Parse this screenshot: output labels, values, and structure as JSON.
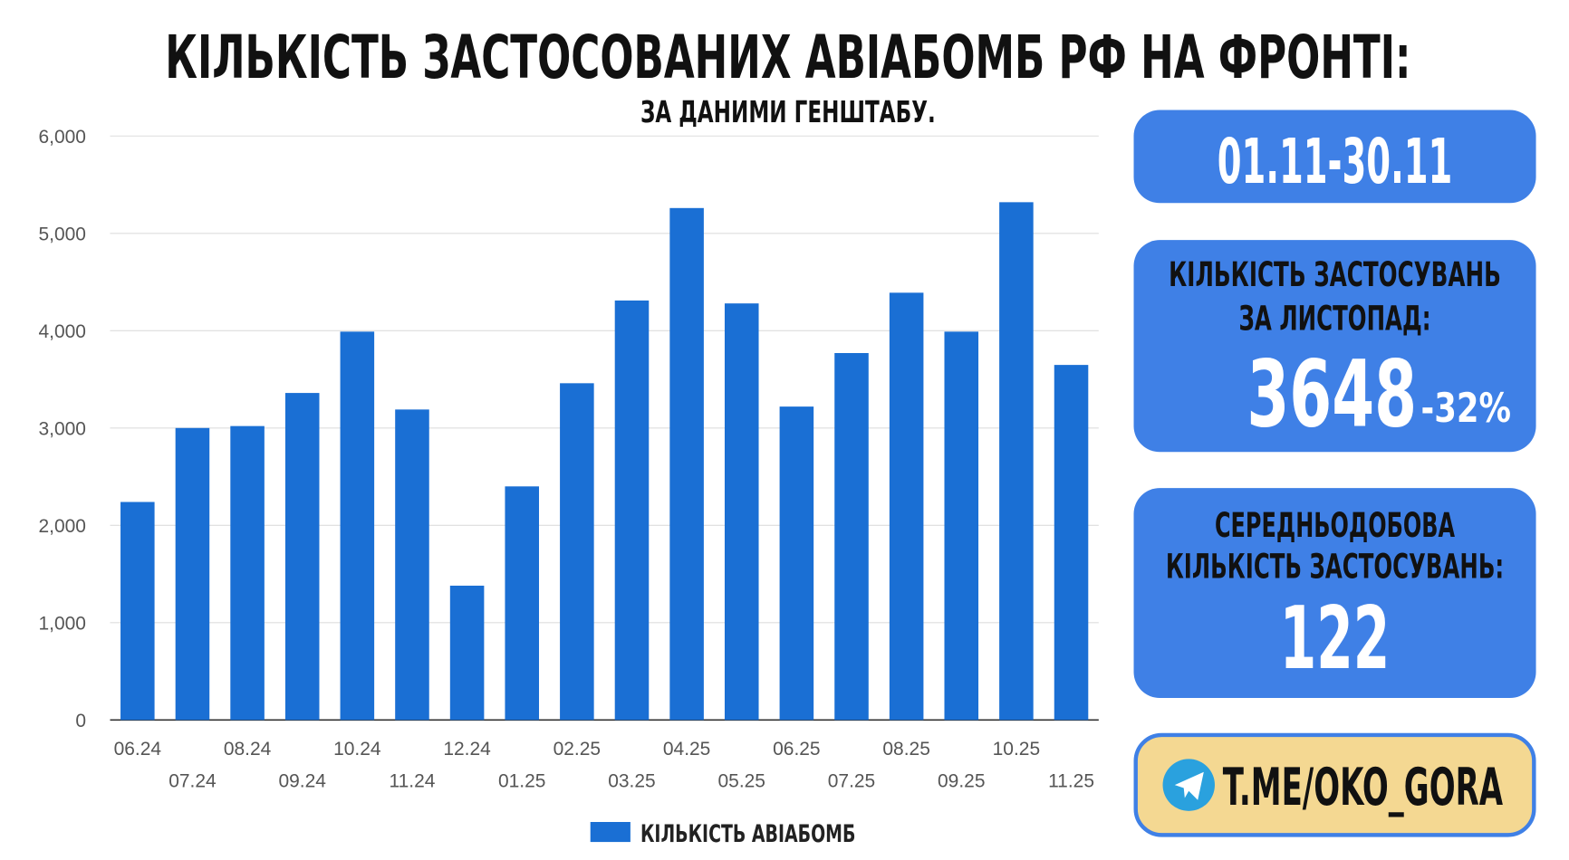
{
  "chart_data": {
    "type": "bar",
    "title": "КІЛЬКІСТЬ ЗАСТОСОВАНИХ АВІАБОМБ РФ НА ФРОНТІ:",
    "subtitle": "ЗА ДАНИМИ ГЕНШТАБУ.",
    "categories": [
      "06.24",
      "07.24",
      "08.24",
      "09.24",
      "10.24",
      "11.24",
      "12.24",
      "01.25",
      "02.25",
      "03.25",
      "04.25",
      "05.25",
      "06.25",
      "07.25",
      "08.25",
      "09.25",
      "10.25",
      "11.25"
    ],
    "series": [
      {
        "name": "КІЛЬКІСТЬ АВІАБОМБ",
        "color": "#1a6fd4",
        "values": [
          2240,
          3000,
          3020,
          3360,
          3990,
          3190,
          1380,
          2400,
          3460,
          4310,
          5260,
          4280,
          3220,
          3770,
          4390,
          3990,
          5320,
          3648
        ]
      }
    ],
    "ylim": [
      0,
      6000
    ],
    "yticks": [
      0,
      {
        "value": 1000,
        "label": "1,000"
      },
      {
        "value": 2000,
        "label": "2,000"
      },
      {
        "value": 3000,
        "label": "3,000"
      },
      {
        "value": 4000,
        "label": "4,000"
      },
      {
        "value": 5000,
        "label": "5,000"
      },
      {
        "value": 6000,
        "label": "6,000"
      }
    ],
    "grid": true,
    "legend": "bottom"
  },
  "panels": {
    "period": "01.11-30.11",
    "monthly": {
      "label_1": "КІЛЬКІСТЬ ЗАСТОСУВАНЬ",
      "label_2": "ЗА ЛИСТОПАД:",
      "value": "3648",
      "change": "-32%"
    },
    "daily": {
      "label_1": "СЕРЕДНЬОДОБОВА",
      "label_2": "КІЛЬКІСТЬ ЗАСТОСУВАНЬ:",
      "value": "122"
    },
    "link": "T.ME/OKO_GORA"
  }
}
